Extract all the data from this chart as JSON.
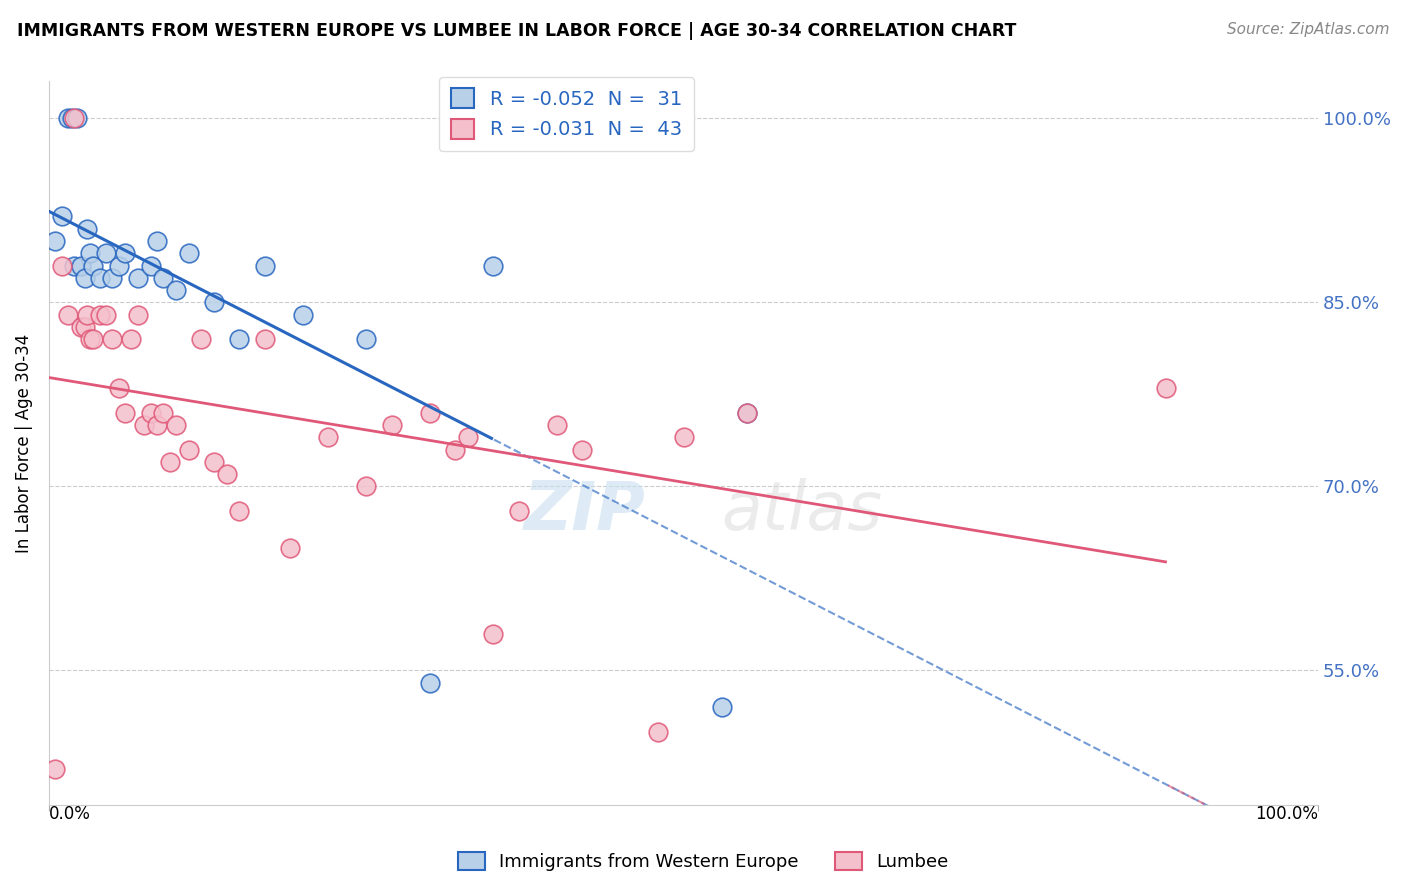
{
  "title": "IMMIGRANTS FROM WESTERN EUROPE VS LUMBEE IN LABOR FORCE | AGE 30-34 CORRELATION CHART",
  "source": "Source: ZipAtlas.com",
  "ylabel": "In Labor Force | Age 30-34",
  "yticks": [
    100.0,
    85.0,
    70.0,
    55.0
  ],
  "ytick_labels": [
    "100.0%",
    "85.0%",
    "70.0%",
    "55.0%"
  ],
  "blue_color": "#b8d0e8",
  "blue_line_color": "#2866c0",
  "pink_color": "#f4c0cc",
  "pink_line_color": "#e05878",
  "xmin": 0.0,
  "xmax": 100.0,
  "ymin": 44.0,
  "ymax": 103.0,
  "blue_points_x": [
    0.5,
    1.0,
    1.5,
    1.8,
    2.0,
    2.2,
    2.5,
    2.8,
    3.0,
    3.2,
    3.5,
    4.0,
    4.5,
    5.0,
    5.5,
    6.0,
    7.0,
    8.0,
    8.5,
    9.0,
    10.0,
    11.0,
    13.0,
    15.0,
    17.0,
    20.0,
    25.0,
    30.0,
    35.0,
    53.0,
    55.0
  ],
  "blue_points_y": [
    90.0,
    92.0,
    100.0,
    100.0,
    88.0,
    100.0,
    88.0,
    87.0,
    91.0,
    89.0,
    88.0,
    87.0,
    89.0,
    87.0,
    88.0,
    89.0,
    87.0,
    88.0,
    90.0,
    87.0,
    86.0,
    89.0,
    85.0,
    82.0,
    88.0,
    84.0,
    82.0,
    54.0,
    88.0,
    52.0,
    76.0
  ],
  "pink_points_x": [
    0.5,
    1.0,
    1.5,
    2.0,
    2.5,
    2.8,
    3.0,
    3.2,
    3.5,
    4.0,
    4.5,
    5.0,
    5.5,
    6.0,
    6.5,
    7.0,
    7.5,
    8.0,
    8.5,
    9.0,
    9.5,
    10.0,
    11.0,
    12.0,
    13.0,
    14.0,
    15.0,
    17.0,
    19.0,
    22.0,
    25.0,
    27.0,
    30.0,
    32.0,
    33.0,
    35.0,
    37.0,
    40.0,
    42.0,
    48.0,
    50.0,
    55.0,
    88.0
  ],
  "pink_points_y": [
    47.0,
    88.0,
    84.0,
    100.0,
    83.0,
    83.0,
    84.0,
    82.0,
    82.0,
    84.0,
    84.0,
    82.0,
    78.0,
    76.0,
    82.0,
    84.0,
    75.0,
    76.0,
    75.0,
    76.0,
    72.0,
    75.0,
    73.0,
    82.0,
    72.0,
    71.0,
    68.0,
    82.0,
    65.0,
    74.0,
    70.0,
    75.0,
    76.0,
    73.0,
    74.0,
    58.0,
    68.0,
    75.0,
    73.0,
    50.0,
    74.0,
    76.0,
    78.0
  ],
  "blue_solid_end": 35.0,
  "pink_solid_end": 88.0,
  "legend_blue_label": "R = -0.052  N =  31",
  "legend_pink_label": "R = -0.031  N =  43"
}
